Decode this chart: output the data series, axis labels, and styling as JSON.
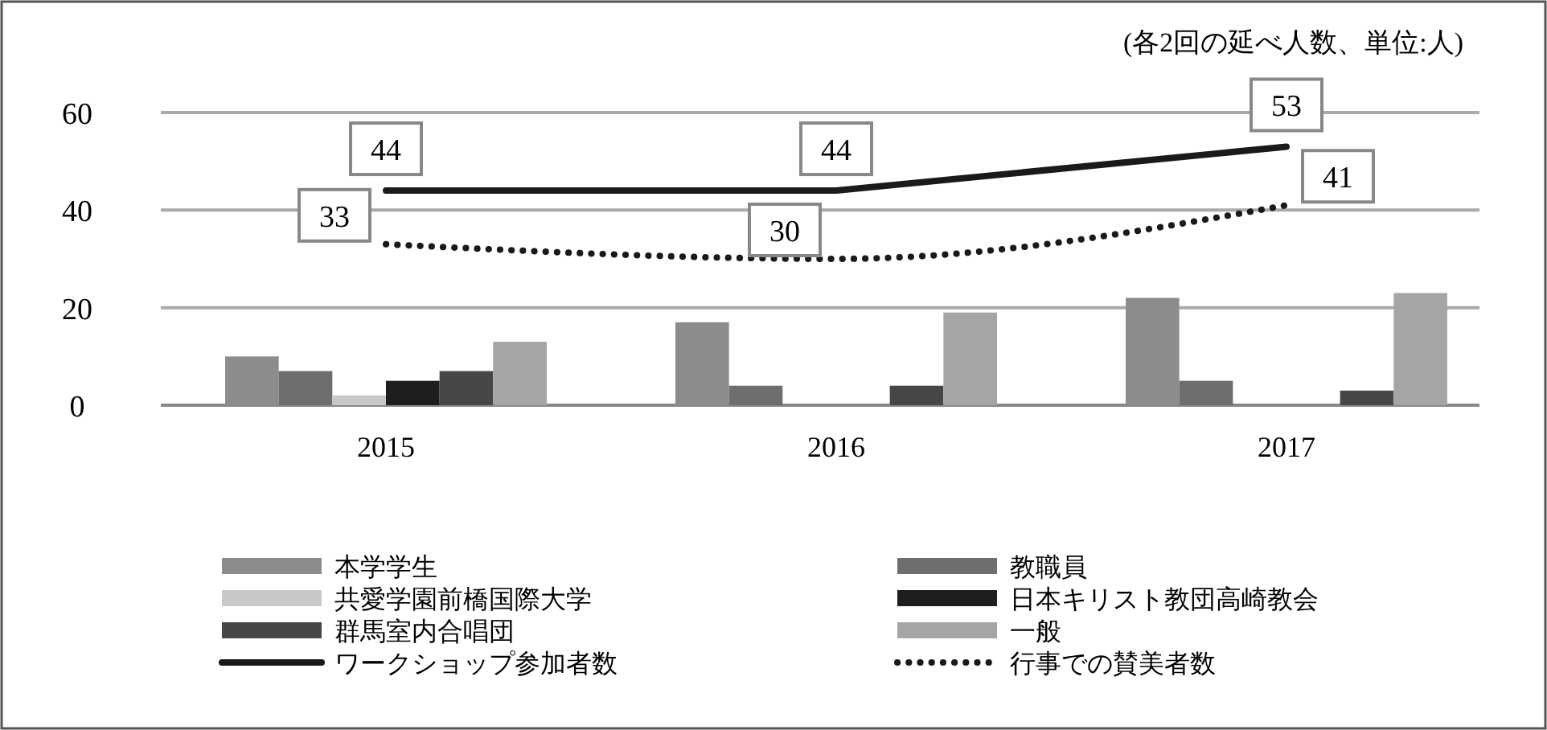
{
  "chart_data": {
    "type": "bar",
    "annotations": [
      "(各2回の延べ人数、単位:人)"
    ],
    "categories": [
      "2015",
      "2016",
      "2017"
    ],
    "ylim": [
      0,
      60
    ],
    "yticks": [
      0,
      20,
      40,
      60
    ],
    "grid": "y",
    "legend": "bottom",
    "series": [
      {
        "name": "本学学生",
        "color": "#8c8c8c",
        "values": [
          10,
          17,
          22
        ]
      },
      {
        "name": "教職員",
        "color": "#6e6e6e",
        "values": [
          7,
          4,
          5
        ]
      },
      {
        "name": "共愛学園前橋国際大学",
        "color": "#c8c8c8",
        "values": [
          2,
          0,
          0
        ]
      },
      {
        "name": "日本キリスト教団高崎教会",
        "color": "#1e1e1e",
        "values": [
          5,
          0,
          0
        ]
      },
      {
        "name": "群馬室内合唱団",
        "color": "#474747",
        "values": [
          7,
          4,
          3
        ]
      },
      {
        "name": "一般",
        "color": "#a5a5a5",
        "values": [
          13,
          19,
          23
        ]
      },
      {
        "name": "ワークショップ参加者数",
        "type": "line",
        "line_style": "solid",
        "color": "#1a1a1a",
        "values": [
          44,
          44,
          53
        ],
        "data_labels": true
      },
      {
        "name": "行事での賛美者数",
        "type": "line",
        "line_style": "dotted",
        "color": "#1a1a1a",
        "values": [
          33,
          30,
          41
        ],
        "data_labels": true
      }
    ]
  }
}
